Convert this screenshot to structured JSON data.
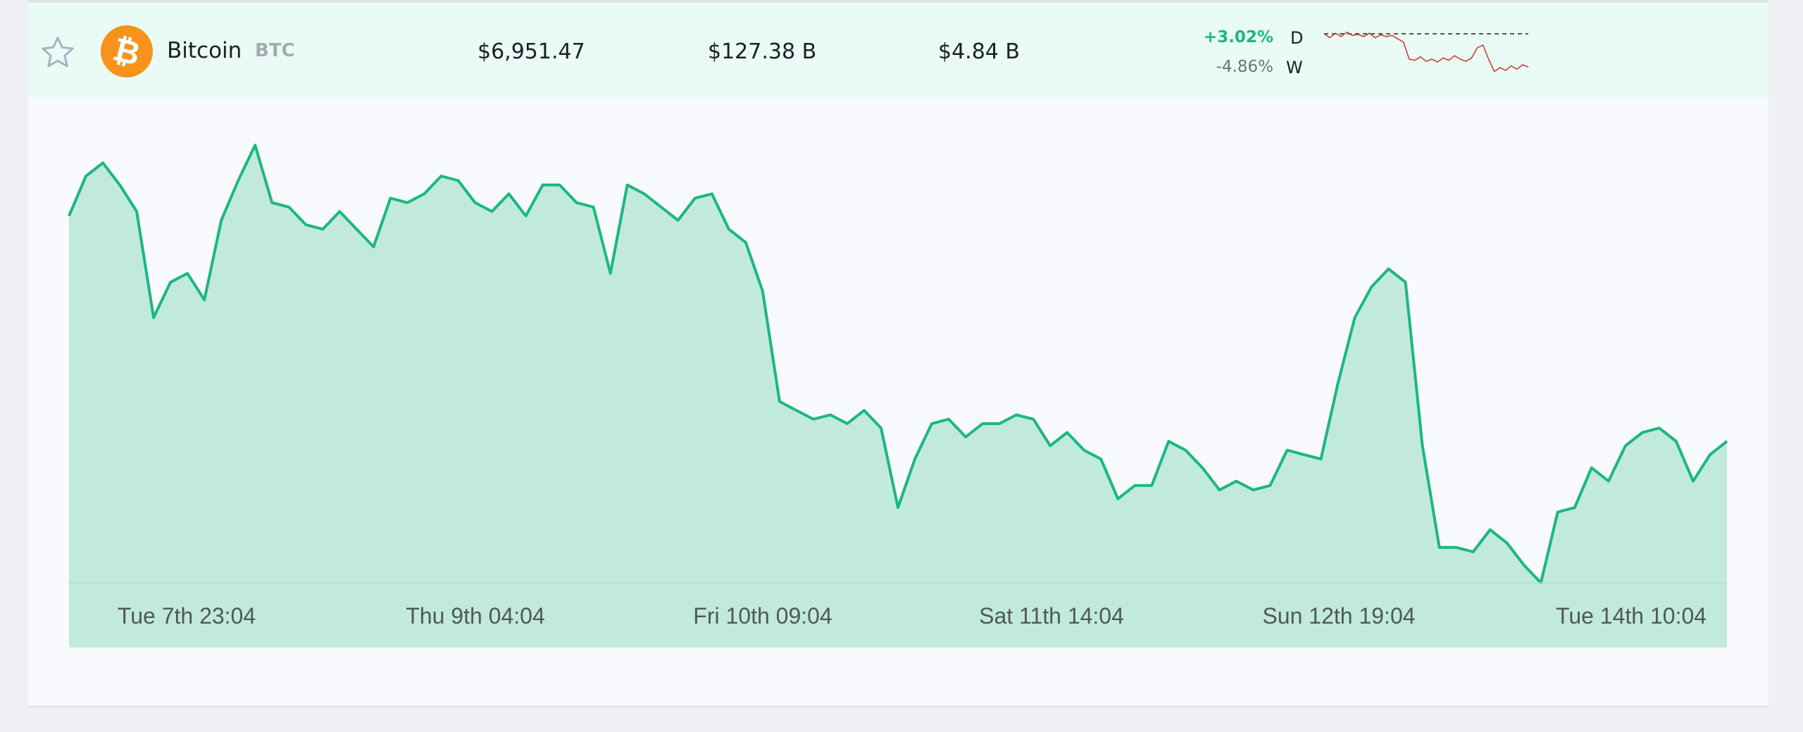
{
  "coin": {
    "name": "Bitcoin",
    "symbol": "BTC",
    "logo_glyph": "₿",
    "price": "$6,951.47",
    "market_cap": "$127.38 B",
    "volume": "$4.84 B",
    "change_day": "+3.02%",
    "change_day_label": "D",
    "change_week": "-4.86%",
    "change_week_label": "W"
  },
  "icons": {
    "favorite": "star-outline-icon",
    "logo": "bitcoin-icon"
  },
  "colors": {
    "accent_green": "#1eb878",
    "line_green": "#1ab87f",
    "area_fill": "#c2eadc",
    "bitcoin_orange": "#f7931a",
    "negative_red": "#c0392b",
    "row_highlight": "#e9fbf4"
  },
  "chart_data": {
    "type": "area",
    "title": "",
    "xlabel": "",
    "ylabel": "",
    "x_ticks": [
      "Tue 7th 23:04",
      "Thu 9th 04:04",
      "Fri 10th 09:04",
      "Sat 11th 14:04",
      "Sun 12th 19:04",
      "Tue 14th 10:04"
    ],
    "grid": false,
    "legend": "none",
    "y_axis_labels": false,
    "series": [
      {
        "values": [
          0.83,
          0.92,
          0.95,
          0.9,
          0.84,
          0.6,
          0.68,
          0.7,
          0.64,
          0.82,
          0.91,
          0.99,
          0.86,
          0.85,
          0.81,
          0.8,
          0.84,
          0.8,
          0.76,
          0.87,
          0.86,
          0.88,
          0.92,
          0.91,
          0.86,
          0.84,
          0.88,
          0.83,
          0.9,
          0.9,
          0.86,
          0.85,
          0.7,
          0.9,
          0.88,
          0.85,
          0.82,
          0.87,
          0.88,
          0.8,
          0.77,
          0.66,
          0.41,
          0.39,
          0.37,
          0.38,
          0.36,
          0.39,
          0.35,
          0.17,
          0.28,
          0.36,
          0.37,
          0.33,
          0.36,
          0.36,
          0.38,
          0.37,
          0.31,
          0.34,
          0.3,
          0.28,
          0.19,
          0.22,
          0.22,
          0.32,
          0.3,
          0.26,
          0.21,
          0.23,
          0.21,
          0.22,
          0.3,
          0.29,
          0.28,
          0.45,
          0.6,
          0.67,
          0.71,
          0.68,
          0.31,
          0.08,
          0.08,
          0.07,
          0.12,
          0.09,
          0.04,
          0,
          0.16,
          0.17,
          0.26,
          0.23,
          0.31,
          0.34,
          0.35,
          0.32,
          0.23,
          0.29,
          0.32
        ]
      }
    ]
  },
  "sparkline": {
    "values": [
      0.85,
      0.78,
      0.86,
      0.8,
      0.88,
      0.82,
      0.84,
      0.8,
      0.86,
      0.78,
      0.83,
      0.8,
      0.82,
      0.76,
      0.7,
      0.4,
      0.38,
      0.44,
      0.36,
      0.4,
      0.35,
      0.42,
      0.38,
      0.46,
      0.4,
      0.36,
      0.42,
      0.6,
      0.65,
      0.4,
      0.18,
      0.25,
      0.2,
      0.28,
      0.22,
      0.3,
      0.26
    ]
  }
}
